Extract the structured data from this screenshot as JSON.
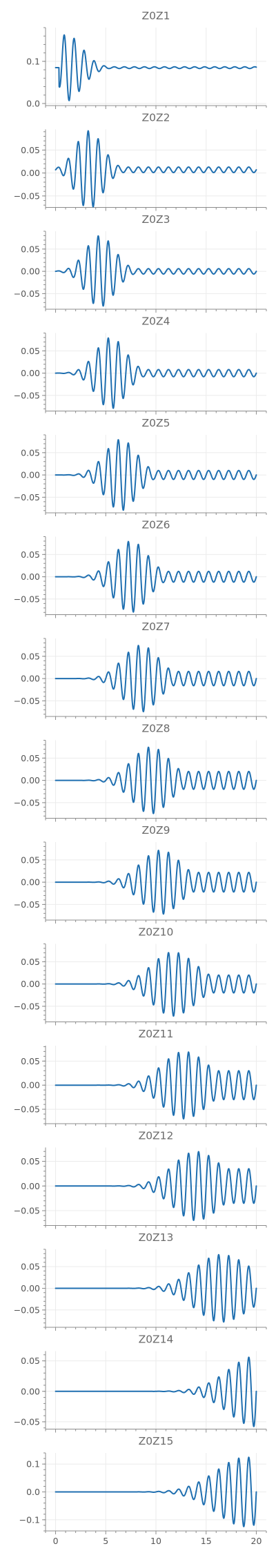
{
  "figure": {
    "background": "#ffffff",
    "line_color": "#1f6fb0"
  },
  "chart_data": [
    {
      "type": "line",
      "title": "Z0Z1",
      "xlim": [
        -1,
        21
      ],
      "ylim": [
        -0.005,
        0.18
      ],
      "yticks": [
        0,
        0.1
      ],
      "ytick_labels": [
        "0.0",
        "0.1"
      ],
      "show_xtick_labels": false,
      "grid": true,
      "series": [
        {
          "dc": 0.085,
          "amp": 0.08,
          "center": 1.0,
          "sigma_left": 0.6,
          "sigma_right": 1.6,
          "period": 1.0,
          "phase": -0.25,
          "start": 0.35,
          "tail": 0.002
        }
      ]
    },
    {
      "type": "line",
      "title": "Z0Z2",
      "xlim": [
        -1,
        21
      ],
      "ylim": [
        -0.075,
        0.095
      ],
      "yticks": [
        -0.05,
        0,
        0.05
      ],
      "ytick_labels": [
        "−0.05",
        "0.00",
        "0.05"
      ],
      "show_xtick_labels": false,
      "grid": true,
      "series": [
        {
          "dc": 0.007,
          "amp": 0.085,
          "center": 3.3,
          "sigma_left": 1.3,
          "sigma_right": 1.4,
          "period": 1.0,
          "phase": 0.0,
          "start": 0.0,
          "tail": 0.006
        }
      ]
    },
    {
      "type": "line",
      "title": "Z0Z3",
      "xlim": [
        -1,
        21
      ],
      "ylim": [
        -0.085,
        0.09
      ],
      "yticks": [
        -0.05,
        0,
        0.05
      ],
      "ytick_labels": [
        "−0.05",
        "0.00",
        "0.05"
      ],
      "show_xtick_labels": false,
      "grid": true,
      "series": [
        {
          "dc": 0.0,
          "amp": 0.08,
          "center": 4.4,
          "sigma_left": 1.4,
          "sigma_right": 1.5,
          "period": 1.0,
          "phase": 0.0,
          "start": 0.0,
          "tail": 0.006
        }
      ]
    },
    {
      "type": "line",
      "title": "Z0Z4",
      "xlim": [
        -1,
        21
      ],
      "ylim": [
        -0.085,
        0.09
      ],
      "yticks": [
        -0.05,
        0,
        0.05
      ],
      "ytick_labels": [
        "−0.05",
        "0.00",
        "0.05"
      ],
      "show_xtick_labels": false,
      "grid": true,
      "series": [
        {
          "dc": 0.0,
          "amp": 0.08,
          "center": 5.5,
          "sigma_left": 1.5,
          "sigma_right": 1.5,
          "period": 1.0,
          "phase": 0.0,
          "start": 0.0,
          "tail": 0.008
        }
      ]
    },
    {
      "type": "line",
      "title": "Z0Z5",
      "xlim": [
        -1,
        21
      ],
      "ylim": [
        -0.085,
        0.09
      ],
      "yticks": [
        -0.05,
        0,
        0.05
      ],
      "ytick_labels": [
        "−0.05",
        "0.00",
        "0.05"
      ],
      "show_xtick_labels": false,
      "grid": true,
      "series": [
        {
          "dc": 0.0,
          "amp": 0.08,
          "center": 6.5,
          "sigma_left": 1.6,
          "sigma_right": 1.6,
          "period": 1.0,
          "phase": 0.0,
          "start": 0.0,
          "tail": 0.01
        }
      ]
    },
    {
      "type": "line",
      "title": "Z0Z6",
      "xlim": [
        -1,
        21
      ],
      "ylim": [
        -0.085,
        0.09
      ],
      "yticks": [
        -0.05,
        0,
        0.05
      ],
      "ytick_labels": [
        "−0.05",
        "0.00",
        "0.05"
      ],
      "show_xtick_labels": false,
      "grid": true,
      "series": [
        {
          "dc": 0.0,
          "amp": 0.08,
          "center": 7.5,
          "sigma_left": 1.7,
          "sigma_right": 1.7,
          "period": 1.0,
          "phase": 0.0,
          "start": 0.0,
          "tail": 0.012
        }
      ]
    },
    {
      "type": "line",
      "title": "Z0Z7",
      "xlim": [
        -1,
        21
      ],
      "ylim": [
        -0.085,
        0.09
      ],
      "yticks": [
        -0.05,
        0,
        0.05
      ],
      "ytick_labels": [
        "−0.05",
        "0.00",
        "0.05"
      ],
      "show_xtick_labels": false,
      "grid": true,
      "series": [
        {
          "dc": 0.0,
          "amp": 0.075,
          "center": 8.5,
          "sigma_left": 1.8,
          "sigma_right": 1.8,
          "period": 1.0,
          "phase": 0.0,
          "start": 0.0,
          "tail": 0.016
        }
      ]
    },
    {
      "type": "line",
      "title": "Z0Z8",
      "xlim": [
        -1,
        21
      ],
      "ylim": [
        -0.085,
        0.09
      ],
      "yticks": [
        -0.05,
        0,
        0.05
      ],
      "ytick_labels": [
        "−0.05",
        "0.00",
        "0.05"
      ],
      "show_xtick_labels": false,
      "grid": true,
      "series": [
        {
          "dc": 0.0,
          "amp": 0.075,
          "center": 9.5,
          "sigma_left": 1.9,
          "sigma_right": 1.9,
          "period": 1.0,
          "phase": 0.0,
          "start": 0.0,
          "tail": 0.02
        }
      ]
    },
    {
      "type": "line",
      "title": "Z0Z9",
      "xlim": [
        -1,
        21
      ],
      "ylim": [
        -0.085,
        0.09
      ],
      "yticks": [
        -0.05,
        0,
        0.05
      ],
      "ytick_labels": [
        "−0.05",
        "0.00",
        "0.05"
      ],
      "show_xtick_labels": false,
      "grid": true,
      "series": [
        {
          "dc": 0.0,
          "amp": 0.072,
          "center": 10.5,
          "sigma_left": 2.0,
          "sigma_right": 2.0,
          "period": 1.0,
          "phase": 0.0,
          "start": 0.0,
          "tail": 0.022
        }
      ]
    },
    {
      "type": "line",
      "title": "Z0Z10",
      "xlim": [
        -1,
        21
      ],
      "ylim": [
        -0.085,
        0.09
      ],
      "yticks": [
        -0.05,
        0,
        0.05
      ],
      "ytick_labels": [
        "−0.05",
        "0.00",
        "0.05"
      ],
      "show_xtick_labels": false,
      "grid": true,
      "series": [
        {
          "dc": 0.0,
          "amp": 0.072,
          "center": 11.7,
          "sigma_left": 2.1,
          "sigma_right": 2.3,
          "period": 1.0,
          "phase": 0.0,
          "start": 0.0,
          "tail": 0.02
        }
      ]
    },
    {
      "type": "line",
      "title": "Z0Z11",
      "xlim": [
        -1,
        21
      ],
      "ylim": [
        -0.08,
        0.082
      ],
      "yticks": [
        -0.05,
        0,
        0.05
      ],
      "ytick_labels": [
        "−0.05",
        "0.00",
        "0.05"
      ],
      "show_xtick_labels": false,
      "grid": true,
      "series": [
        {
          "dc": 0.0,
          "amp": 0.07,
          "center": 12.8,
          "sigma_left": 2.2,
          "sigma_right": 2.4,
          "period": 1.0,
          "phase": 0.0,
          "start": 0.0,
          "tail": 0.03
        }
      ]
    },
    {
      "type": "line",
      "title": "Z0Z12",
      "xlim": [
        -1,
        21
      ],
      "ylim": [
        -0.08,
        0.078
      ],
      "yticks": [
        -0.05,
        0,
        0.05
      ],
      "ytick_labels": [
        "−0.05",
        "0.00",
        "0.05"
      ],
      "show_xtick_labels": false,
      "grid": true,
      "series": [
        {
          "dc": 0.0,
          "amp": 0.07,
          "center": 14.0,
          "sigma_left": 2.3,
          "sigma_right": 2.5,
          "period": 1.0,
          "phase": 0.0,
          "start": 0.0,
          "tail": 0.035
        }
      ]
    },
    {
      "type": "line",
      "title": "Z0Z13",
      "xlim": [
        -1,
        21
      ],
      "ylim": [
        -0.09,
        0.09
      ],
      "yticks": [
        -0.05,
        0,
        0.05
      ],
      "ytick_labels": [
        "−0.05",
        "0.00",
        "0.05"
      ],
      "show_xtick_labels": false,
      "grid": true,
      "series": [
        {
          "dc": 0.0,
          "amp": 0.078,
          "center": 16.5,
          "sigma_left": 2.6,
          "sigma_right": 3.0,
          "period": 1.0,
          "phase": 0.0,
          "start": 0.0,
          "tail": 0.02
        }
      ]
    },
    {
      "type": "line",
      "title": "Z0Z14",
      "xlim": [
        -1,
        21
      ],
      "ylim": [
        -0.062,
        0.066
      ],
      "yticks": [
        -0.05,
        0,
        0.05
      ],
      "ytick_labels": [
        "−0.05",
        "0.00",
        "0.05"
      ],
      "show_xtick_labels": false,
      "grid": true,
      "series": [
        {
          "dc": 0.0,
          "amp": 0.058,
          "center": 20.0,
          "sigma_left": 2.8,
          "sigma_right": 4.0,
          "period": 1.0,
          "phase": 0.0,
          "start": 0.0,
          "tail": 0.0
        }
      ]
    },
    {
      "type": "line",
      "title": "Z0Z15",
      "xlim": [
        -1,
        21
      ],
      "ylim": [
        -0.14,
        0.14
      ],
      "yticks": [
        -0.1,
        0,
        0.1
      ],
      "ytick_labels": [
        "−0.1",
        "0.0",
        "0.1"
      ],
      "show_xtick_labels": true,
      "xticks": [
        0,
        5,
        10,
        15,
        20
      ],
      "xtick_labels": [
        "0",
        "5",
        "10",
        "15",
        "20"
      ],
      "grid": true,
      "series": [
        {
          "dc": 0.0,
          "amp": 0.125,
          "center": 19.0,
          "sigma_left": 3.0,
          "sigma_right": 2.5,
          "period": 1.0,
          "phase": 0.0,
          "start": 0.0,
          "tail": 0.0
        }
      ]
    }
  ]
}
